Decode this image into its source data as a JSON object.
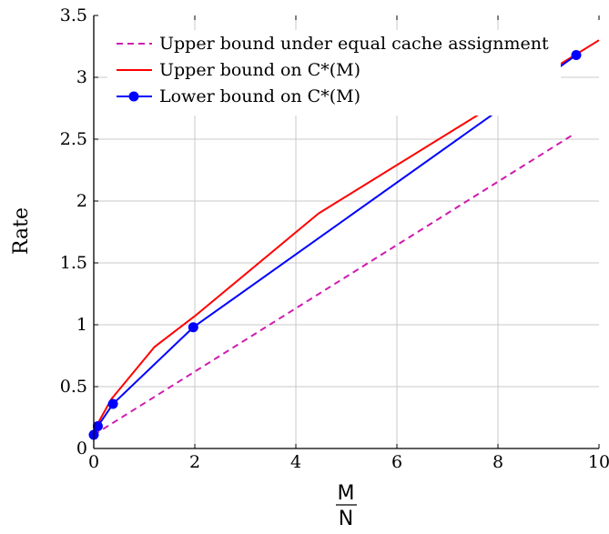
{
  "chart_data": {
    "type": "line",
    "xlabel_num": "M",
    "xlabel_den": "N",
    "ylabel": "Rate",
    "xlim": [
      0,
      10
    ],
    "ylim": [
      0,
      3.5
    ],
    "xticks": [
      "0",
      "2",
      "4",
      "6",
      "8",
      "10"
    ],
    "yticks": [
      "0",
      "0.5",
      "1",
      "1.5",
      "2",
      "2.5",
      "3",
      "3.5"
    ],
    "xtick_values": [
      0,
      2,
      4,
      6,
      8,
      10
    ],
    "ytick_values": [
      0,
      0.5,
      1,
      1.5,
      2,
      2.5,
      3,
      3.5
    ],
    "grid": true,
    "legend_position": "top-left",
    "series": [
      {
        "name": "Upper bound under equal cache assignment",
        "color": "#d01bb0",
        "style": "dashed",
        "marker": "none",
        "x": [
          0,
          9.5
        ],
        "y": [
          0.11,
          2.54
        ]
      },
      {
        "name": "Upper bound on C*(M)",
        "color": "#ff0000",
        "style": "solid",
        "marker": "none",
        "x": [
          0,
          0.05,
          0.35,
          1.2,
          2.0,
          4.45,
          10
        ],
        "y": [
          0.11,
          0.18,
          0.4,
          0.82,
          1.07,
          1.9,
          3.3
        ]
      },
      {
        "name": "Lower bound on C*(M)",
        "color": "#0000ff",
        "style": "solid",
        "marker": "circle",
        "x": [
          0,
          0.08,
          0.38,
          1.97,
          9.55
        ],
        "y": [
          0.11,
          0.18,
          0.36,
          0.98,
          3.18
        ]
      }
    ]
  }
}
